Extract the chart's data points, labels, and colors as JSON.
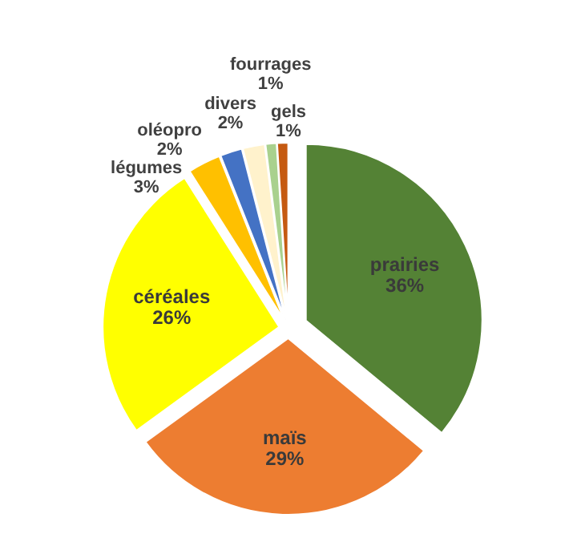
{
  "chart_data": {
    "type": "pie",
    "categories": [
      "prairies",
      "maïs",
      "céréales",
      "légumes",
      "oléopro",
      "divers",
      "fourrages",
      "gels"
    ],
    "values": [
      36,
      29,
      26,
      3,
      2,
      2,
      1,
      1
    ],
    "colors": [
      "#548235",
      "#ed7d31",
      "#ffff00",
      "#ffc000",
      "#4472c4",
      "#fff2cc",
      "#a9d18e",
      "#c55a11"
    ],
    "value_labels": [
      "36%",
      "29%",
      "26%",
      "3%",
      "2%",
      "2%",
      "1%",
      "1%"
    ]
  }
}
